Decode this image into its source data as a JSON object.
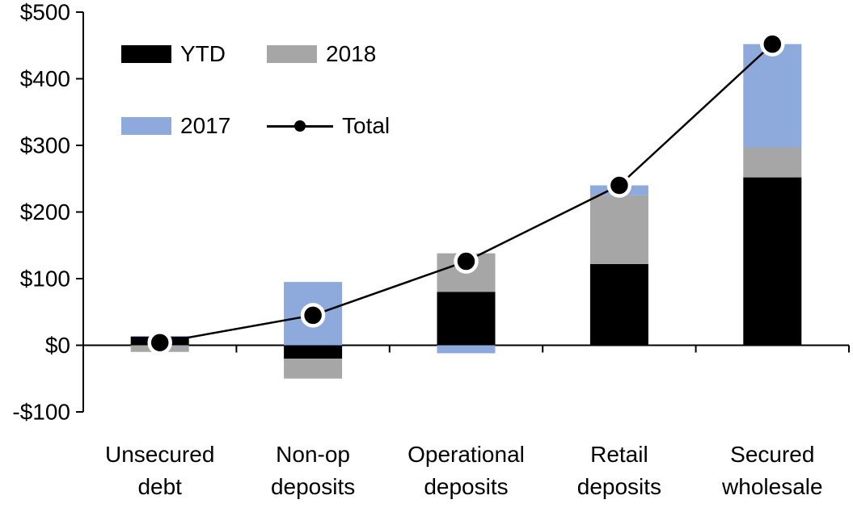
{
  "chart_data": {
    "type": "bar",
    "subtype": "stacked-bars-with-total-line",
    "title": "",
    "xlabel": "",
    "ylabel": "",
    "grid": false,
    "categories": [
      {
        "label_lines": [
          "Unsecured",
          "debt"
        ]
      },
      {
        "label_lines": [
          "Non-op",
          "deposits"
        ]
      },
      {
        "label_lines": [
          "Operational",
          "deposits"
        ]
      },
      {
        "label_lines": [
          "Retail",
          "deposits"
        ]
      },
      {
        "label_lines": [
          "Secured",
          "wholesale"
        ]
      }
    ],
    "series": [
      {
        "name": "YTD",
        "color": "#000000",
        "values": [
          13,
          -20,
          80,
          122,
          252
        ]
      },
      {
        "name": "2018",
        "color": "#A6A6A6",
        "values": [
          -10,
          -30,
          58,
          103,
          45
        ]
      },
      {
        "name": "2017",
        "color": "#8EA9DB",
        "values": [
          1,
          95,
          -12,
          15,
          155
        ]
      }
    ],
    "line_series": {
      "name": "Total",
      "color": "#000000",
      "marker_ring_color": "#FFFFFF",
      "values": [
        4,
        45,
        126,
        240,
        452
      ]
    },
    "y_axis": {
      "min": -100,
      "max": 500,
      "tick_step": 100,
      "tick_labels": [
        "$500",
        "$400",
        "$300",
        "$200",
        "$100",
        "$0",
        "-$100"
      ]
    },
    "legend": {
      "position": "top-left-inside",
      "entries": [
        "YTD",
        "2018",
        "2017",
        "Total"
      ]
    }
  }
}
